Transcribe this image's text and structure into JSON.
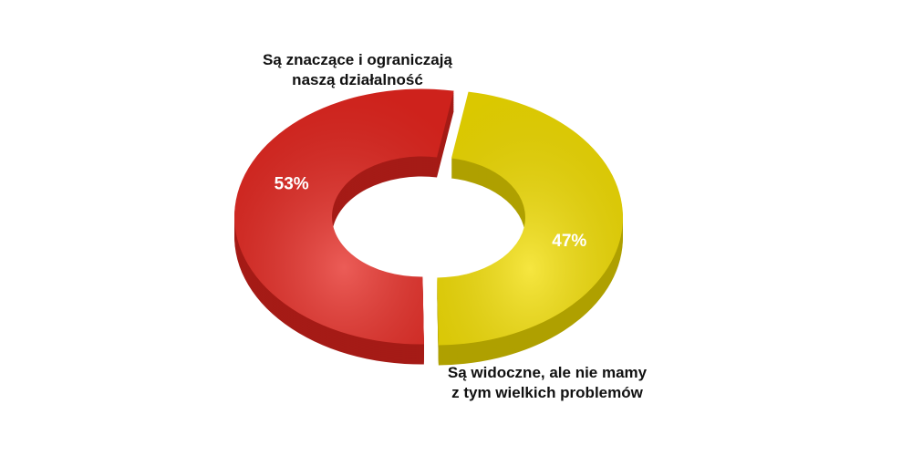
{
  "chart_data": {
    "type": "donut",
    "categories": [
      "Są znaczące i ograniczają\nnaszą działalność",
      "Są widoczne, ale nie mamy\nz tym wielkich problemów"
    ],
    "values": [
      53,
      47
    ],
    "value_labels": [
      "53%",
      "47%"
    ],
    "colors": [
      "#e5261f",
      "#f3de00"
    ]
  }
}
